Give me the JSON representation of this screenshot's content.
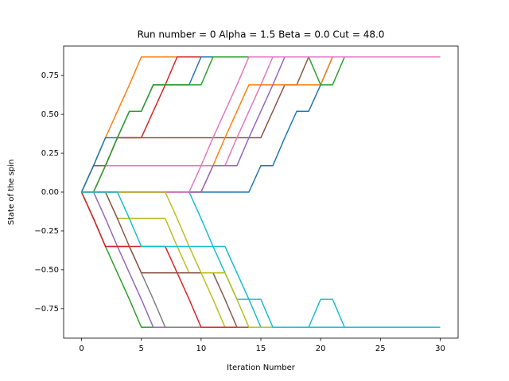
{
  "chart_data": {
    "type": "line",
    "title": "Run number = 0 Alpha = 1.5 Beta = 0.0 Cut = 48.0",
    "x_label": "Iteration Number",
    "y_label": "State of the spin",
    "x": [
      0,
      1,
      2,
      3,
      4,
      5,
      6,
      7,
      8,
      9,
      10,
      11,
      12,
      13,
      14,
      15,
      16,
      17,
      18,
      19,
      20,
      21,
      22,
      23,
      24,
      25,
      26,
      27,
      28,
      29,
      30
    ],
    "xlim": [
      -1.5,
      31.5
    ],
    "ylim": [
      -0.94,
      0.94
    ],
    "xticks": [
      0,
      5,
      10,
      15,
      20,
      25,
      30
    ],
    "yticks": [
      {
        "value": -0.75,
        "label": "−0.75"
      },
      {
        "value": -0.5,
        "label": "−0.50"
      },
      {
        "value": -0.25,
        "label": "−0.25"
      },
      {
        "value": 0,
        "label": "0.00"
      },
      {
        "value": 0.25,
        "label": "0.25"
      },
      {
        "value": 0.5,
        "label": "0.50"
      },
      {
        "value": 0.75,
        "label": "0.75"
      }
    ],
    "series": [
      {
        "color": "#1f77b4",
        "values": [
          0,
          0,
          0,
          0,
          0,
          0,
          0,
          0,
          0,
          0,
          0,
          0,
          0,
          0,
          0,
          0.17,
          0.17,
          0.35,
          0.52,
          0.52,
          0.69,
          0.87,
          0.87,
          0.87,
          0.87,
          0.87,
          0.87,
          0.87,
          0.87,
          0.87,
          0.87
        ]
      },
      {
        "color": "#ff7f0e",
        "values": [
          0,
          0.17,
          0.35,
          0.52,
          0.69,
          0.87,
          0.87,
          0.87,
          0.87,
          0.87,
          0.87,
          0.87,
          0.87,
          0.87,
          0.87,
          0.87,
          0.87,
          0.87,
          0.87,
          0.87,
          0.87,
          0.87,
          0.87,
          0.87,
          0.87,
          0.87,
          0.87,
          0.87,
          0.87,
          0.87,
          0.87
        ]
      },
      {
        "color": "#2ca02c",
        "values": [
          0,
          -0.17,
          -0.35,
          -0.52,
          -0.69,
          -0.87,
          -0.87,
          -0.87,
          -0.87,
          -0.87,
          -0.87,
          -0.87,
          -0.87,
          -0.87,
          -0.87,
          -0.87,
          -0.87,
          -0.87,
          -0.87,
          -0.87,
          -0.87,
          -0.87,
          -0.87,
          -0.87,
          -0.87,
          -0.87,
          -0.87,
          -0.87,
          -0.87,
          -0.87,
          -0.87
        ]
      },
      {
        "color": "#d62728",
        "values": [
          0,
          0,
          0.17,
          0.35,
          0.35,
          0.35,
          0.52,
          0.69,
          0.87,
          0.87,
          0.87,
          0.87,
          0.87,
          0.87,
          0.87,
          0.87,
          0.87,
          0.87,
          0.87,
          0.87,
          0.87,
          0.87,
          0.87,
          0.87,
          0.87,
          0.87,
          0.87,
          0.87,
          0.87,
          0.87,
          0.87
        ]
      },
      {
        "color": "#9467bd",
        "values": [
          0,
          0,
          -0.17,
          -0.35,
          -0.52,
          -0.69,
          -0.87,
          -0.87,
          -0.87,
          -0.87,
          -0.87,
          -0.87,
          -0.87,
          -0.87,
          -0.87,
          -0.87,
          -0.87,
          -0.87,
          -0.87,
          -0.87,
          -0.87,
          -0.87,
          -0.87,
          -0.87,
          -0.87,
          -0.87,
          -0.87,
          -0.87,
          -0.87,
          -0.87,
          -0.87
        ]
      },
      {
        "color": "#8c564b",
        "values": [
          0,
          0.17,
          0.17,
          0.35,
          0.35,
          0.35,
          0.35,
          0.35,
          0.35,
          0.35,
          0.35,
          0.35,
          0.35,
          0.35,
          0.35,
          0.35,
          0.52,
          0.69,
          0.69,
          0.87,
          0.87,
          0.87,
          0.87,
          0.87,
          0.87,
          0.87,
          0.87,
          0.87,
          0.87,
          0.87,
          0.87
        ]
      },
      {
        "color": "#e377c2",
        "values": [
          0,
          0,
          0.17,
          0.17,
          0.17,
          0.17,
          0.17,
          0.17,
          0.17,
          0.17,
          0.17,
          0.17,
          0.17,
          0.35,
          0.52,
          0.69,
          0.87,
          0.87,
          0.87,
          0.87,
          0.87,
          0.87,
          0.87,
          0.87,
          0.87,
          0.87,
          0.87,
          0.87,
          0.87,
          0.87,
          0.87
        ]
      },
      {
        "color": "#7f7f7f",
        "values": [
          0,
          -0.17,
          -0.35,
          -0.35,
          -0.35,
          -0.52,
          -0.69,
          -0.87,
          -0.87,
          -0.87,
          -0.87,
          -0.87,
          -0.87,
          -0.87,
          -0.87,
          -0.87,
          -0.87,
          -0.87,
          -0.87,
          -0.87,
          -0.87,
          -0.87,
          -0.87,
          -0.87,
          -0.87,
          -0.87,
          -0.87,
          -0.87,
          -0.87,
          -0.87,
          -0.87
        ]
      },
      {
        "color": "#bcbd22",
        "values": [
          0,
          0,
          0,
          -0.17,
          -0.17,
          -0.17,
          -0.17,
          -0.17,
          -0.35,
          -0.52,
          -0.52,
          -0.69,
          -0.87,
          -0.87,
          -0.87,
          -0.87,
          -0.87,
          -0.87,
          -0.87,
          -0.87,
          -0.87,
          -0.87,
          -0.87,
          -0.87,
          -0.87,
          -0.87,
          -0.87,
          -0.87,
          -0.87,
          -0.87,
          -0.87
        ]
      },
      {
        "color": "#17becf",
        "values": [
          0,
          0,
          0,
          0,
          0,
          0,
          0,
          0,
          0,
          0,
          -0.17,
          -0.35,
          -0.52,
          -0.69,
          -0.69,
          -0.87,
          -0.87,
          -0.87,
          -0.87,
          -0.87,
          -0.69,
          -0.69,
          -0.87,
          -0.87,
          -0.87,
          -0.87,
          -0.87,
          -0.87,
          -0.87,
          -0.87,
          -0.87
        ]
      },
      {
        "color": "#1f77b4",
        "values": [
          0,
          0.17,
          0.35,
          0.35,
          0.52,
          0.52,
          0.69,
          0.69,
          0.69,
          0.69,
          0.87,
          0.87,
          0.87,
          0.87,
          0.87,
          0.87,
          0.87,
          0.87,
          0.87,
          0.87,
          0.87,
          0.87,
          0.87,
          0.87,
          0.87,
          0.87,
          0.87,
          0.87,
          0.87,
          0.87,
          0.87
        ]
      },
      {
        "color": "#ff7f0e",
        "values": [
          0,
          0,
          0,
          0,
          0,
          0,
          0,
          0,
          0,
          0,
          0,
          0.17,
          0.35,
          0.52,
          0.69,
          0.69,
          0.69,
          0.69,
          0.69,
          0.69,
          0.69,
          0.87,
          0.87,
          0.87,
          0.87,
          0.87,
          0.87,
          0.87,
          0.87,
          0.87,
          0.87
        ]
      },
      {
        "color": "#2ca02c",
        "values": [
          0,
          0,
          0.17,
          0.35,
          0.52,
          0.52,
          0.69,
          0.69,
          0.69,
          0.69,
          0.69,
          0.87,
          0.87,
          0.87,
          0.87,
          0.87,
          0.87,
          0.87,
          0.87,
          0.87,
          0.69,
          0.69,
          0.87,
          0.87,
          0.87,
          0.87,
          0.87,
          0.87,
          0.87,
          0.87,
          0.87
        ]
      },
      {
        "color": "#d62728",
        "values": [
          0,
          -0.17,
          -0.35,
          -0.35,
          -0.35,
          -0.35,
          -0.35,
          -0.35,
          -0.52,
          -0.69,
          -0.87,
          -0.87,
          -0.87,
          -0.87,
          -0.87,
          -0.87,
          -0.87,
          -0.87,
          -0.87,
          -0.87,
          -0.87,
          -0.87,
          -0.87,
          -0.87,
          -0.87,
          -0.87,
          -0.87,
          -0.87,
          -0.87,
          -0.87,
          -0.87
        ]
      },
      {
        "color": "#9467bd",
        "values": [
          0,
          0,
          0,
          0,
          0,
          0,
          0,
          0,
          0,
          0,
          0,
          0.17,
          0.17,
          0.17,
          0.35,
          0.52,
          0.69,
          0.87,
          0.87,
          0.87,
          0.87,
          0.87,
          0.87,
          0.87,
          0.87,
          0.87,
          0.87,
          0.87,
          0.87,
          0.87,
          0.87
        ]
      },
      {
        "color": "#8c564b",
        "values": [
          0,
          0,
          0,
          -0.17,
          -0.35,
          -0.52,
          -0.52,
          -0.52,
          -0.52,
          -0.52,
          -0.52,
          -0.52,
          -0.69,
          -0.87,
          -0.87,
          -0.87,
          -0.87,
          -0.87,
          -0.87,
          -0.87,
          -0.87,
          -0.87,
          -0.87,
          -0.87,
          -0.87,
          -0.87,
          -0.87,
          -0.87,
          -0.87,
          -0.87,
          -0.87
        ]
      },
      {
        "color": "#e377c2",
        "values": [
          0,
          0,
          0,
          0,
          0,
          0,
          0,
          0,
          0,
          0,
          0.17,
          0.35,
          0.52,
          0.69,
          0.87,
          0.87,
          0.87,
          0.87,
          0.87,
          0.87,
          0.87,
          0.87,
          0.87,
          0.87,
          0.87,
          0.87,
          0.87,
          0.87,
          0.87,
          0.87,
          0.87
        ]
      },
      {
        "color": "#bcbd22",
        "values": [
          0,
          0,
          0,
          0,
          0,
          0,
          0,
          0,
          -0.17,
          -0.35,
          -0.52,
          -0.52,
          -0.52,
          -0.69,
          -0.87,
          -0.87,
          -0.87,
          -0.87,
          -0.87,
          -0.87,
          -0.87,
          -0.87,
          -0.87,
          -0.87,
          -0.87,
          -0.87,
          -0.87,
          -0.87,
          -0.87,
          -0.87,
          -0.87
        ]
      },
      {
        "color": "#17becf",
        "values": [
          0,
          0,
          0,
          0,
          -0.17,
          -0.35,
          -0.35,
          -0.35,
          -0.35,
          -0.35,
          -0.35,
          -0.35,
          -0.35,
          -0.52,
          -0.69,
          -0.69,
          -0.87,
          -0.87,
          -0.87,
          -0.87,
          -0.87,
          -0.87,
          -0.87,
          -0.87,
          -0.87,
          -0.87,
          -0.87,
          -0.87,
          -0.87,
          -0.87,
          -0.87
        ]
      }
    ]
  }
}
